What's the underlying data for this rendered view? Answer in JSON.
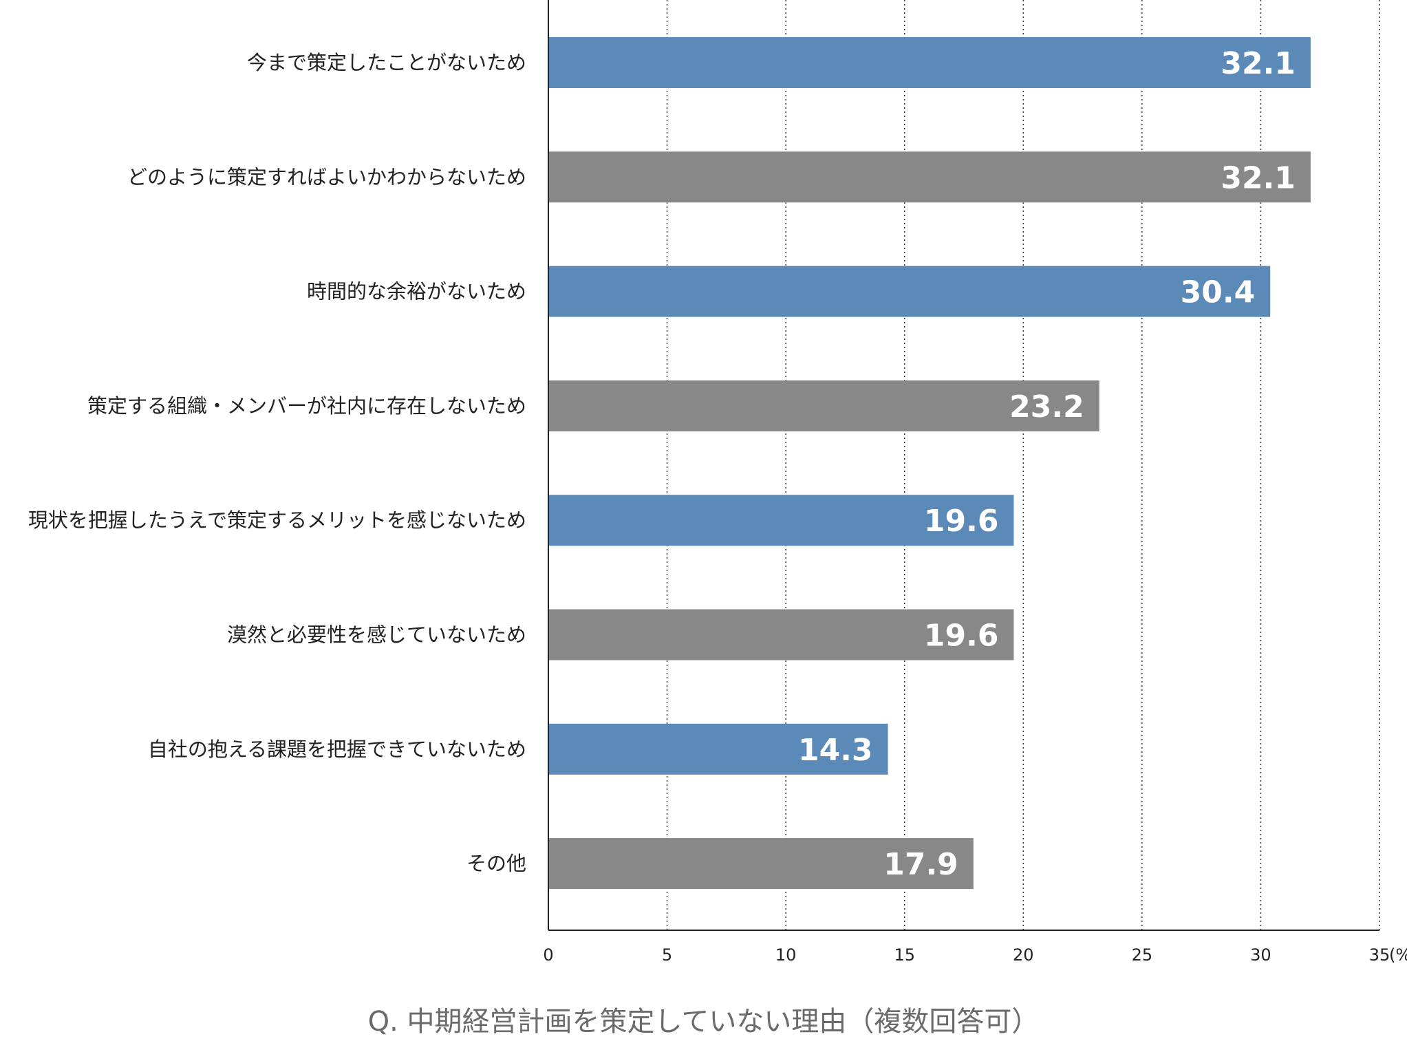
{
  "chart_data": {
    "type": "bar",
    "orientation": "horizontal",
    "title": "Q. 中期経営計画を策定していない理由（複数回答可）",
    "xlabel": "",
    "ylabel": "",
    "unit": "(%)",
    "xlim": [
      0,
      35
    ],
    "ticks": [
      0,
      5,
      10,
      15,
      20,
      25,
      30,
      35
    ],
    "grid": true,
    "categories": [
      "今まで策定したことがないため",
      "どのように策定すればよいかわからないため",
      "時間的な余裕がないため",
      "策定する組織・メンバーが社内に存在しないため",
      "現状を把握したうえで策定するメリットを感じないため",
      "漠然と必要性を感じていないため",
      "自社の抱える課題を把握できていないため",
      "その他"
    ],
    "values": [
      32.1,
      32.1,
      30.4,
      23.2,
      19.6,
      19.6,
      14.3,
      17.9
    ],
    "value_labels": [
      "32.1",
      "32.1",
      "30.4",
      "23.2",
      "19.6",
      "19.6",
      "14.3",
      "17.9"
    ],
    "bar_colors": [
      "#5b8ab8",
      "#888888",
      "#5b8ab8",
      "#888888",
      "#5b8ab8",
      "#888888",
      "#5b8ab8",
      "#888888"
    ]
  }
}
